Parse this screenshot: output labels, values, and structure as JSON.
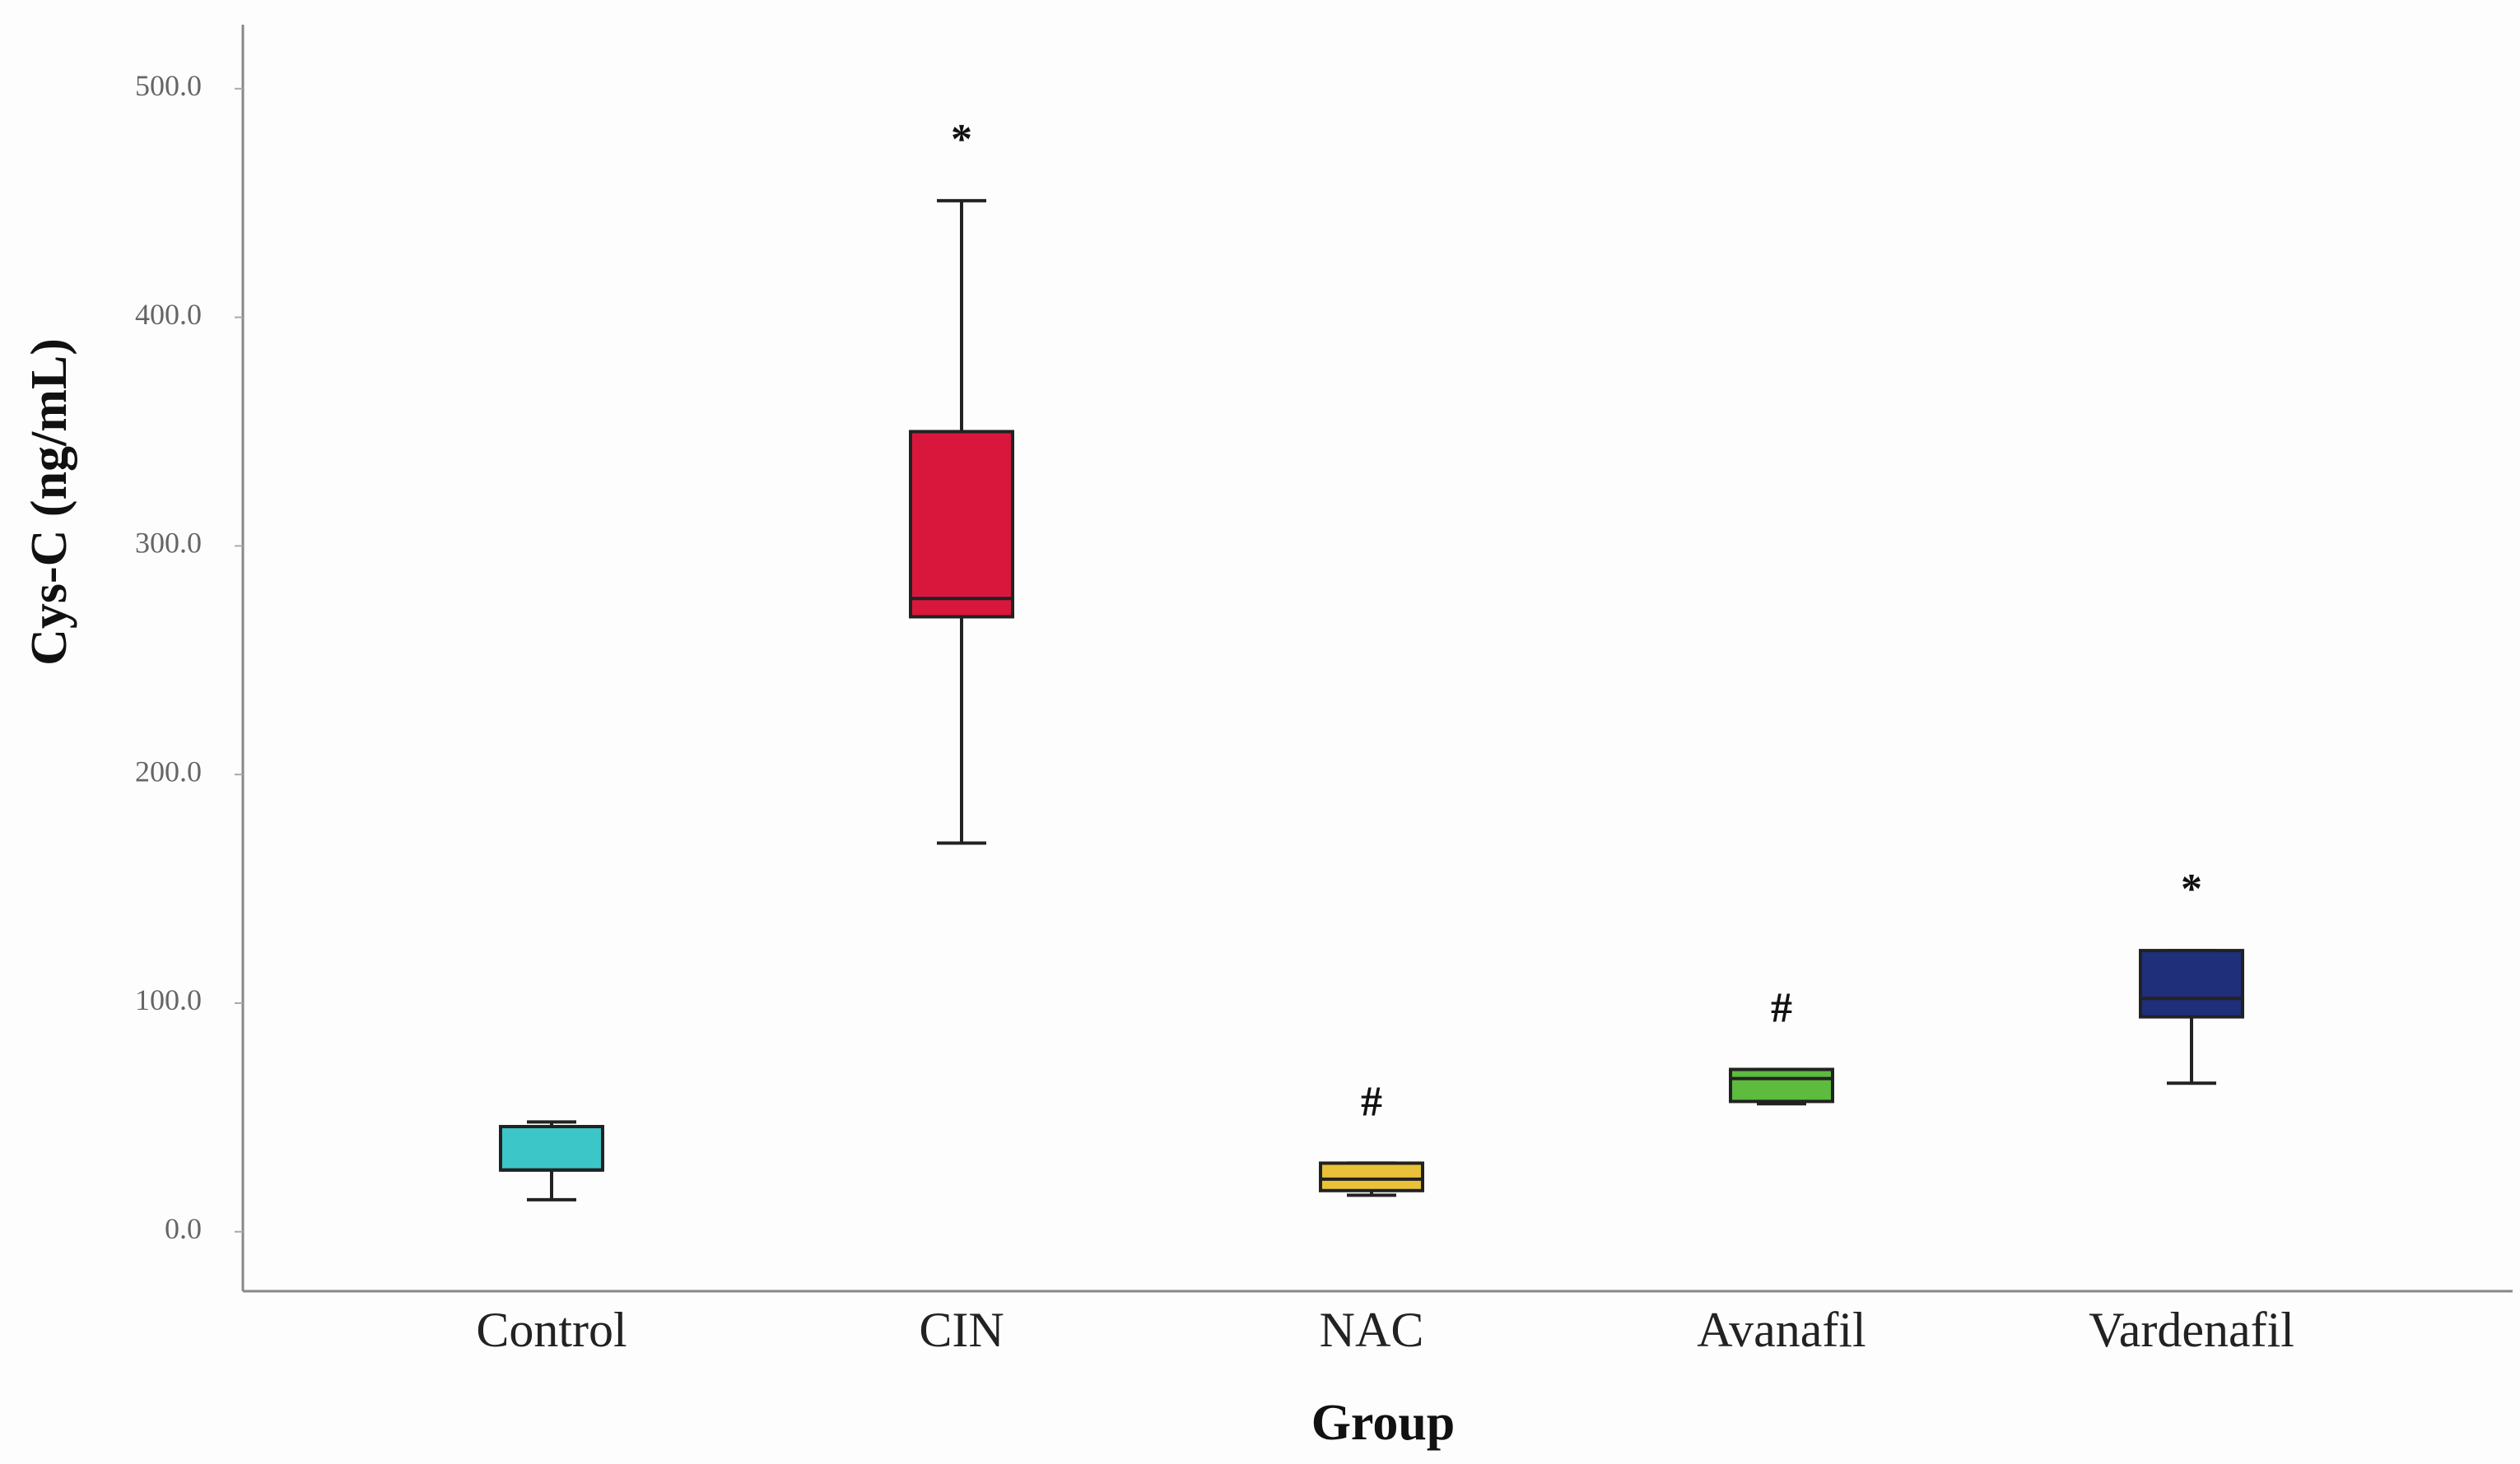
{
  "chart_data": {
    "type": "box",
    "x_label": "Group",
    "y_label": "Cys-C (ng/mL)",
    "categories": [
      "Control",
      "CIN",
      "NAC",
      "Avanafil",
      "Vardenafil"
    ],
    "colors": [
      "#3cc6c8",
      "#d9173d",
      "#e9c23a",
      "#5dbb3e",
      "#1f2f7a"
    ],
    "min": [
      14,
      170,
      16,
      56,
      65
    ],
    "q1": [
      27,
      269,
      18,
      57,
      94
    ],
    "median": [
      27,
      277,
      23,
      67,
      102
    ],
    "q3": [
      46,
      350,
      30,
      71,
      123
    ],
    "max": [
      48,
      451,
      30,
      71,
      123
    ],
    "annotations": [
      null,
      "*",
      "#",
      "#",
      "*"
    ],
    "ylim": [
      -26,
      528
    ],
    "yticks": [
      {
        "value": 0,
        "label": "0.0"
      },
      {
        "value": 100,
        "label": "100.0"
      },
      {
        "value": 200,
        "label": "200.0"
      },
      {
        "value": 300,
        "label": "300.0"
      },
      {
        "value": 400,
        "label": "400.0"
      },
      {
        "value": 500,
        "label": "500.0"
      }
    ]
  }
}
